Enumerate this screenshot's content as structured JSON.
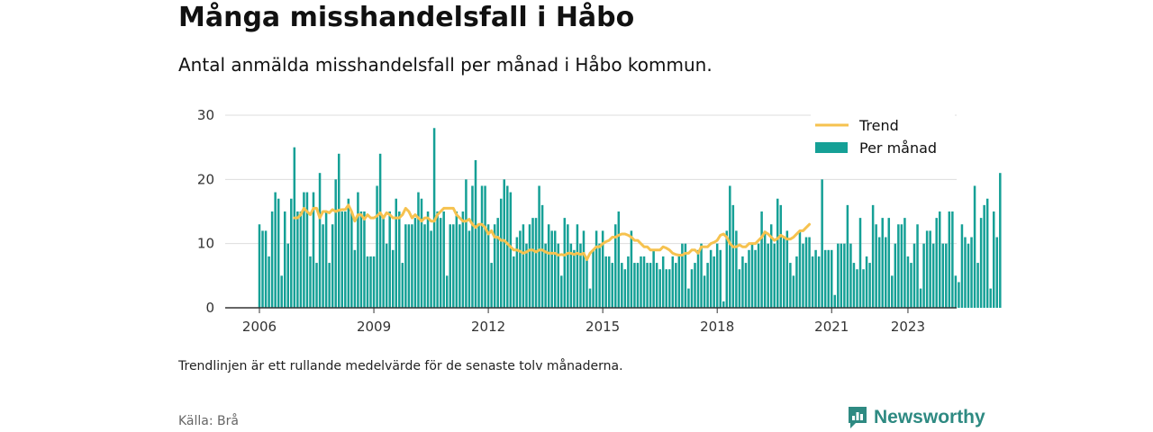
{
  "title": "Många misshandelsfall i Håbo",
  "subtitle": "Antal anmälda misshandelsfall per månad i Håbo kommun.",
  "note": "Trendlinjen är ett rullande medelvärde för de senaste tolv månaderna.",
  "source": "Källa: Brå",
  "brand": {
    "name": "Newsworthy",
    "icon": "newsworthy-logo-icon"
  },
  "colors": {
    "bars": "#15a096",
    "trend": "#f6c24f",
    "grid": "#dddddd",
    "axis": "#333333",
    "brand": "#2e8a82"
  },
  "chart_data": {
    "type": "bar",
    "x_start": "2006-01",
    "frequency": "monthly",
    "ylim": [
      0,
      30
    ],
    "yticks": [
      0,
      10,
      20,
      30
    ],
    "xtick_labels": [
      "2006",
      "2009",
      "2012",
      "2015",
      "2018",
      "2021",
      "2023"
    ],
    "grid": true,
    "legend": {
      "position": "top-right",
      "entries": [
        "Trend",
        "Per månad"
      ]
    },
    "series": [
      {
        "name": "Per månad",
        "type": "bar",
        "values": [
          13,
          12,
          12,
          8,
          15,
          18,
          17,
          5,
          15,
          10,
          17,
          25,
          15,
          15,
          18,
          18,
          8,
          18,
          7,
          21,
          13,
          15,
          7,
          13,
          20,
          24,
          15,
          15,
          17,
          15,
          9,
          18,
          15,
          15,
          8,
          8,
          8,
          19,
          24,
          14,
          10,
          15,
          9,
          17,
          15,
          7,
          13,
          13,
          13,
          14,
          18,
          17,
          13,
          15,
          12,
          28,
          15,
          14,
          15,
          5,
          13,
          13,
          15,
          13,
          15,
          20,
          12,
          19,
          23,
          13,
          19,
          19,
          13,
          7,
          13,
          14,
          17,
          20,
          19,
          18,
          8,
          11,
          12,
          13,
          10,
          13,
          14,
          14,
          19,
          16,
          10,
          13,
          12,
          12,
          10,
          5,
          14,
          13,
          10,
          9,
          13,
          10,
          12,
          8,
          3,
          9,
          12,
          10,
          12,
          8,
          8,
          7,
          13,
          15,
          7,
          6,
          8,
          12,
          7,
          7,
          8,
          8,
          7,
          7,
          9,
          7,
          6,
          8,
          6,
          6,
          8,
          7,
          8,
          10,
          10,
          3,
          6,
          7,
          9,
          10,
          5,
          7,
          9,
          8,
          10,
          9,
          1,
          12,
          19,
          16,
          12,
          6,
          8,
          7,
          9,
          10,
          9,
          10,
          15,
          12,
          10,
          13,
          10,
          17,
          16,
          11,
          12,
          7,
          5,
          8,
          12,
          10,
          11,
          11,
          8,
          9,
          8,
          20,
          9,
          9,
          9,
          2,
          10,
          10,
          10,
          16,
          10,
          7,
          6,
          14,
          6,
          8,
          7,
          16,
          13,
          11,
          14,
          11,
          14,
          5,
          10,
          13,
          13,
          14,
          8,
          7,
          10,
          13,
          3,
          10,
          12,
          12,
          10,
          14,
          15,
          10,
          10,
          15,
          15,
          5,
          4,
          13,
          11,
          10,
          11,
          19,
          7,
          14,
          16,
          17,
          3,
          15,
          11,
          21
        ]
      },
      {
        "name": "Trend",
        "type": "line",
        "start": "2006-12",
        "values": [
          14,
          14,
          14.5,
          15.5,
          15,
          14.5,
          15.5,
          15.5,
          14,
          15,
          15,
          14.8,
          15.3,
          15,
          15.2,
          15.3,
          15.3,
          16,
          15,
          13.5,
          14.5,
          14.5,
          13.8,
          14.5,
          14,
          14,
          14.3,
          14.8,
          14,
          14.8,
          14.5,
          14,
          14,
          14,
          14.5,
          15.5,
          15,
          14,
          14.5,
          14,
          13.5,
          14,
          14,
          13.5,
          13.5,
          14.5,
          15,
          15.5,
          15.5,
          15.5,
          15.5,
          14.5,
          14,
          13.5,
          13.5,
          13.8,
          13,
          12.5,
          13,
          13,
          12.5,
          11.5,
          12,
          11,
          11,
          10.5,
          10.5,
          10,
          9.5,
          9,
          9,
          8.8,
          8.5,
          8.7,
          9,
          9,
          8.7,
          9,
          9,
          8.7,
          8.5,
          8.5,
          8.5,
          8.2,
          8.3,
          8.2,
          8.5,
          8.5,
          8.3,
          8.5,
          8.3,
          8.5,
          7.5,
          8.5,
          9,
          9.5,
          9.5,
          10,
          10.3,
          10.5,
          11,
          11,
          11.3,
          11.5,
          11.5,
          11.3,
          11,
          10.5,
          10.5,
          10,
          9.5,
          9.5,
          9,
          9,
          9,
          9,
          9.5,
          9.3,
          9,
          8.5,
          8.3,
          8.2,
          8.2,
          8.5,
          8.5,
          9,
          9,
          8.5,
          9.5,
          9.5,
          9.5,
          10,
          10.2,
          10.5,
          11.3,
          11.5,
          11,
          10,
          9.5,
          9.5,
          9.8,
          9.5,
          9.5,
          10,
          10,
          10,
          10.5,
          11,
          11.8,
          11.5,
          11,
          10.5,
          10.8,
          11.3,
          11,
          10.7,
          10.7,
          11,
          11.5,
          12,
          12,
          12.5,
          13
        ]
      }
    ]
  }
}
